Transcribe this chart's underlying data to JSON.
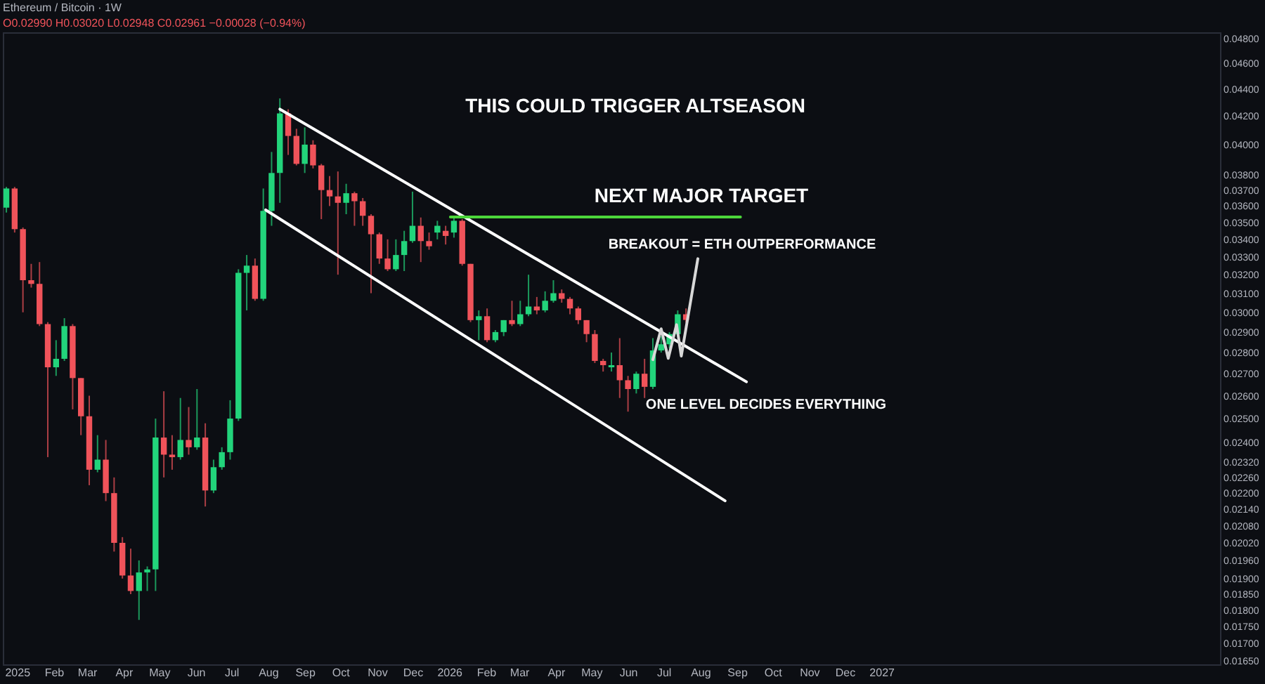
{
  "chart_data": {
    "type": "candlestick",
    "title": "Ethereum / Bitcoin · 1W",
    "subtitle": "O0.02990 H0.03020 L0.02948 C0.02961 −0.00028 (−0.94%)",
    "annotations": [
      "THIS COULD TRIGGER ALTSEASON",
      "NEXT MAJOR TARGET",
      "BREAKOUT = ETH OUTPERFORMANCE",
      "ONE LEVEL DECIDES EVERYTHING"
    ],
    "x": [
      "2024-12-23",
      "2024-12-30",
      "2025-01-06",
      "2025-01-13",
      "2025-01-20",
      "2025-01-27",
      "2025-02-03",
      "2025-02-10",
      "2025-02-17",
      "2025-02-24",
      "2025-03-03",
      "2025-03-10",
      "2025-03-17",
      "2025-03-24",
      "2025-03-31",
      "2025-04-07",
      "2025-04-14",
      "2025-04-21",
      "2025-04-28",
      "2025-05-05",
      "2025-05-12",
      "2025-05-19",
      "2025-05-26",
      "2025-06-02",
      "2025-06-09",
      "2025-06-16",
      "2025-06-23",
      "2025-06-30",
      "2025-07-07",
      "2025-07-14",
      "2025-07-21",
      "2025-07-28",
      "2025-08-04",
      "2025-08-11",
      "2025-08-18",
      "2025-08-25",
      "2025-09-01",
      "2025-09-08",
      "2025-09-15",
      "2025-09-22",
      "2025-09-29",
      "2025-10-06",
      "2025-10-13",
      "2025-10-20",
      "2025-10-27",
      "2025-11-03",
      "2025-11-10",
      "2025-11-17",
      "2025-11-24",
      "2025-12-01",
      "2025-12-08",
      "2025-12-15",
      "2025-12-22",
      "2025-12-29",
      "2026-01-05",
      "2026-01-12",
      "2026-01-19",
      "2026-01-26",
      "2026-02-02",
      "2026-02-09",
      "2026-02-16",
      "2026-02-23",
      "2026-03-02",
      "2026-03-09",
      "2026-03-16",
      "2026-03-23",
      "2026-03-30",
      "2026-04-06",
      "2026-04-13",
      "2026-04-20",
      "2026-04-27",
      "2026-05-04",
      "2026-05-11",
      "2026-05-18",
      "2026-05-25",
      "2026-06-01",
      "2026-06-08",
      "2026-06-15",
      "2026-06-22",
      "2026-06-29",
      "2026-07-06",
      "2026-07-13",
      "2026-07-20"
    ],
    "ohlc": [
      [
        0.0359,
        0.0372,
        0.0356,
        0.0371
      ],
      [
        0.0371,
        0.0372,
        0.0344,
        0.0346
      ],
      [
        0.0346,
        0.0347,
        0.03,
        0.0317
      ],
      [
        0.0317,
        0.0326,
        0.0313,
        0.0315
      ],
      [
        0.0315,
        0.0327,
        0.0293,
        0.0294
      ],
      [
        0.0294,
        0.0295,
        0.0234,
        0.0273
      ],
      [
        0.0273,
        0.0286,
        0.0269,
        0.0277
      ],
      [
        0.0277,
        0.0297,
        0.0276,
        0.0293
      ],
      [
        0.0293,
        0.0294,
        0.0254,
        0.0268
      ],
      [
        0.0268,
        0.0268,
        0.0243,
        0.0251
      ],
      [
        0.0251,
        0.026,
        0.0223,
        0.0229
      ],
      [
        0.0229,
        0.0243,
        0.0228,
        0.0233
      ],
      [
        0.0233,
        0.0241,
        0.0217,
        0.022
      ],
      [
        0.022,
        0.0226,
        0.0199,
        0.0202
      ],
      [
        0.0202,
        0.0204,
        0.019,
        0.0191
      ],
      [
        0.0191,
        0.02,
        0.0185,
        0.0186
      ],
      [
        0.0186,
        0.0196,
        0.0177,
        0.0192
      ],
      [
        0.0192,
        0.0194,
        0.0186,
        0.0193
      ],
      [
        0.0193,
        0.025,
        0.0186,
        0.0242
      ],
      [
        0.0242,
        0.0262,
        0.0226,
        0.0235
      ],
      [
        0.0235,
        0.0243,
        0.0229,
        0.0234
      ],
      [
        0.0234,
        0.0259,
        0.0233,
        0.0241
      ],
      [
        0.0241,
        0.0255,
        0.0235,
        0.0238
      ],
      [
        0.0238,
        0.0263,
        0.0237,
        0.0242
      ],
      [
        0.0242,
        0.0248,
        0.0215,
        0.0221
      ],
      [
        0.0221,
        0.0233,
        0.022,
        0.023
      ],
      [
        0.023,
        0.0238,
        0.0229,
        0.0236
      ],
      [
        0.0236,
        0.0258,
        0.0233,
        0.025
      ],
      [
        0.025,
        0.0323,
        0.0249,
        0.0321
      ],
      [
        0.0321,
        0.0331,
        0.0301,
        0.0325
      ],
      [
        0.0325,
        0.0329,
        0.0306,
        0.0307
      ],
      [
        0.0307,
        0.0371,
        0.0306,
        0.0357
      ],
      [
        0.0357,
        0.0395,
        0.0348,
        0.0381
      ],
      [
        0.0381,
        0.0433,
        0.0362,
        0.0422
      ],
      [
        0.0422,
        0.0425,
        0.0393,
        0.0406
      ],
      [
        0.0406,
        0.0411,
        0.0386,
        0.0387
      ],
      [
        0.0387,
        0.0412,
        0.0381,
        0.04
      ],
      [
        0.04,
        0.0403,
        0.0384,
        0.0386
      ],
      [
        0.0386,
        0.0387,
        0.0352,
        0.037
      ],
      [
        0.037,
        0.0379,
        0.036,
        0.0366
      ],
      [
        0.0366,
        0.0382,
        0.032,
        0.0362
      ],
      [
        0.0362,
        0.0374,
        0.0355,
        0.0368
      ],
      [
        0.0368,
        0.0369,
        0.0348,
        0.0363
      ],
      [
        0.0363,
        0.0365,
        0.0348,
        0.0354
      ],
      [
        0.0354,
        0.0355,
        0.031,
        0.0343
      ],
      [
        0.0343,
        0.0344,
        0.0326,
        0.0329
      ],
      [
        0.0329,
        0.034,
        0.0322,
        0.0323
      ],
      [
        0.0323,
        0.034,
        0.0322,
        0.0331
      ],
      [
        0.0331,
        0.0345,
        0.0322,
        0.0339
      ],
      [
        0.0339,
        0.0369,
        0.0338,
        0.0348
      ],
      [
        0.0348,
        0.0353,
        0.0327,
        0.0339
      ],
      [
        0.0339,
        0.0344,
        0.0334,
        0.0336
      ],
      [
        0.0344,
        0.0351,
        0.034,
        0.0348
      ],
      [
        0.0345,
        0.0348,
        0.0337,
        0.0342
      ],
      [
        0.0344,
        0.0353,
        0.0341,
        0.0351
      ],
      [
        0.0351,
        0.0352,
        0.0325,
        0.0326
      ],
      [
        0.0326,
        0.0326,
        0.0295,
        0.0296
      ],
      [
        0.0296,
        0.0301,
        0.0286,
        0.0298
      ],
      [
        0.0298,
        0.0302,
        0.0285,
        0.0286
      ],
      [
        0.0286,
        0.0291,
        0.0285,
        0.029
      ],
      [
        0.029,
        0.0296,
        0.0288,
        0.0296
      ],
      [
        0.0296,
        0.0306,
        0.0293,
        0.0294
      ],
      [
        0.0294,
        0.0306,
        0.0293,
        0.0299
      ],
      [
        0.0299,
        0.032,
        0.0298,
        0.0303
      ],
      [
        0.0303,
        0.0308,
        0.0299,
        0.0301
      ],
      [
        0.0301,
        0.0311,
        0.03,
        0.0306
      ],
      [
        0.0306,
        0.0317,
        0.0305,
        0.031
      ],
      [
        0.031,
        0.0312,
        0.0305,
        0.0307
      ],
      [
        0.0307,
        0.0308,
        0.0299,
        0.0302
      ],
      [
        0.0302,
        0.0303,
        0.0294,
        0.0296
      ],
      [
        0.0296,
        0.0296,
        0.0285,
        0.0289
      ],
      [
        0.0289,
        0.0291,
        0.0275,
        0.0276
      ],
      [
        0.0276,
        0.0277,
        0.0271,
        0.0274
      ],
      [
        0.0273,
        0.028,
        0.0271,
        0.0274
      ],
      [
        0.0274,
        0.0287,
        0.0259,
        0.0267
      ],
      [
        0.0267,
        0.0269,
        0.0253,
        0.0263
      ],
      [
        0.0263,
        0.0271,
        0.0261,
        0.027
      ],
      [
        0.027,
        0.0277,
        0.0259,
        0.0264
      ],
      [
        0.0264,
        0.0287,
        0.0263,
        0.0281
      ],
      [
        0.0281,
        0.0288,
        0.028,
        0.0284
      ],
      [
        0.0284,
        0.029,
        0.0282,
        0.0289
      ],
      [
        0.0289,
        0.0301,
        0.0288,
        0.0299
      ],
      [
        0.0299,
        0.0302,
        0.02948,
        0.02961
      ]
    ],
    "colors": [
      "#22d47b",
      "#f0535a",
      "#f0535a",
      "#f0535a",
      "#f0535a",
      "#f0535a",
      "#22d47b",
      "#22d47b",
      "#f0535a",
      "#f0535a",
      "#f0535a",
      "#22d47b",
      "#f0535a",
      "#f0535a",
      "#f0535a",
      "#f0535a",
      "#22d47b",
      "#22d47b",
      "#22d47b",
      "#f0535a",
      "#f0535a",
      "#22d47b",
      "#f0535a",
      "#22d47b",
      "#f0535a",
      "#22d47b",
      "#22d47b",
      "#22d47b",
      "#22d47b",
      "#22d47b",
      "#f0535a",
      "#22d47b",
      "#22d47b",
      "#22d47b",
      "#f0535a",
      "#f0535a",
      "#22d47b",
      "#f0535a",
      "#f0535a",
      "#f0535a",
      "#f0535a",
      "#22d47b",
      "#f0535a",
      "#f0535a",
      "#f0535a",
      "#f0535a",
      "#f0535a",
      "#22d47b",
      "#22d47b",
      "#22d47b",
      "#f0535a",
      "#f0535a",
      "#22d47b",
      "#f0535a",
      "#22d47b",
      "#f0535a",
      "#f0535a",
      "#22d47b",
      "#f0535a",
      "#22d47b",
      "#22d47b",
      "#f0535a",
      "#22d47b",
      "#22d47b",
      "#f0535a",
      "#22d47b",
      "#22d47b",
      "#f0535a",
      "#f0535a",
      "#f0535a",
      "#f0535a",
      "#f0535a",
      "#f0535a",
      "#22d47b",
      "#f0535a",
      "#f0535a",
      "#22d47b",
      "#f0535a",
      "#22d47b",
      "#22d47b",
      "#22d47b",
      "#22d47b",
      "#f0535a"
    ],
    "series": [
      {
        "type": "line",
        "color": "#ffffff",
        "x": [
          "2025-08-11",
          "2026-09-09"
        ],
        "values": [
          0.04251,
          0.02663
        ]
      },
      {
        "type": "line",
        "color": "#ffffff",
        "x": [
          "2025-07-30",
          "2026-08-22"
        ],
        "values": [
          0.03576,
          0.02171
        ]
      },
      {
        "type": "line",
        "color": "#4cd63a",
        "x": [
          "2026-01-02",
          "2026-09-04"
        ],
        "values": [
          0.03533,
          0.03533
        ]
      },
      {
        "type": "line",
        "color": "#d8d8d8",
        "x": [
          "2026-06-22",
          "2026-06-29",
          "2026-07-05",
          "2026-07-12",
          "2026-07-16",
          "2026-07-30"
        ],
        "values": [
          0.02766,
          0.02916,
          0.02772,
          0.02937,
          0.02783,
          0.03289
        ]
      }
    ],
    "log": "y",
    "xlim": [
      "2024-12-20",
      "2027-10-14"
    ],
    "xticks": [
      {
        "value": "2025-01-01",
        "label": "2025"
      },
      {
        "value": "2025-02-01",
        "label": "Feb"
      },
      {
        "value": "2025-03-01",
        "label": "Mar"
      },
      {
        "value": "2025-04-01",
        "label": "Apr"
      },
      {
        "value": "2025-05-01",
        "label": "May"
      },
      {
        "value": "2025-06-01",
        "label": "Jun"
      },
      {
        "value": "2025-07-01",
        "label": "Jul"
      },
      {
        "value": "2025-08-01",
        "label": "Aug"
      },
      {
        "value": "2025-09-01",
        "label": "Sep"
      },
      {
        "value": "2025-10-01",
        "label": "Oct"
      },
      {
        "value": "2025-11-01",
        "label": "Nov"
      },
      {
        "value": "2025-12-01",
        "label": "Dec"
      },
      {
        "value": "2026-01-01",
        "label": "2026"
      },
      {
        "value": "2026-02-01",
        "label": "Feb"
      },
      {
        "value": "2026-03-01",
        "label": "Mar"
      },
      {
        "value": "2026-04-01",
        "label": "Apr"
      },
      {
        "value": "2026-05-01",
        "label": "May"
      },
      {
        "value": "2026-06-01",
        "label": "Jun"
      },
      {
        "value": "2026-07-01",
        "label": "Jul"
      },
      {
        "value": "2026-08-01",
        "label": "Aug"
      },
      {
        "value": "2026-09-01",
        "label": "Sep"
      },
      {
        "value": "2026-10-01",
        "label": "Oct"
      },
      {
        "value": "2026-11-01",
        "label": "Nov"
      },
      {
        "value": "2026-12-01",
        "label": "Dec"
      },
      {
        "value": "2027-01-01",
        "label": "2027"
      }
    ],
    "ylim": [
      0.0164,
      0.0485
    ],
    "yticks": [
      {
        "value": 0.048,
        "label": "0.04800"
      },
      {
        "value": 0.046,
        "label": "0.04600"
      },
      {
        "value": 0.044,
        "label": "0.04400"
      },
      {
        "value": 0.042,
        "label": "0.04200"
      },
      {
        "value": 0.04,
        "label": "0.04000"
      },
      {
        "value": 0.038,
        "label": "0.03800"
      },
      {
        "value": 0.037,
        "label": "0.03700"
      },
      {
        "value": 0.036,
        "label": "0.03600"
      },
      {
        "value": 0.035,
        "label": "0.03500"
      },
      {
        "value": 0.034,
        "label": "0.03400"
      },
      {
        "value": 0.033,
        "label": "0.03300"
      },
      {
        "value": 0.032,
        "label": "0.03200"
      },
      {
        "value": 0.031,
        "label": "0.03100"
      },
      {
        "value": 0.03,
        "label": "0.03000"
      },
      {
        "value": 0.029,
        "label": "0.02900"
      },
      {
        "value": 0.028,
        "label": "0.02800"
      },
      {
        "value": 0.027,
        "label": "0.02700"
      },
      {
        "value": 0.026,
        "label": "0.02600"
      },
      {
        "value": 0.025,
        "label": "0.02500"
      },
      {
        "value": 0.024,
        "label": "0.02400"
      },
      {
        "value": 0.0232,
        "label": "0.02320"
      },
      {
        "value": 0.0226,
        "label": "0.02260"
      },
      {
        "value": 0.022,
        "label": "0.02200"
      },
      {
        "value": 0.0214,
        "label": "0.02140"
      },
      {
        "value": 0.0208,
        "label": "0.02080"
      },
      {
        "value": 0.0202,
        "label": "0.02020"
      },
      {
        "value": 0.0196,
        "label": "0.01960"
      },
      {
        "value": 0.019,
        "label": "0.01900"
      },
      {
        "value": 0.0185,
        "label": "0.01850"
      },
      {
        "value": 0.018,
        "label": "0.01800"
      },
      {
        "value": 0.0175,
        "label": "0.01750"
      },
      {
        "value": 0.017,
        "label": "0.01700"
      },
      {
        "value": 0.0165,
        "label": "0.01650"
      }
    ],
    "grid": false
  }
}
